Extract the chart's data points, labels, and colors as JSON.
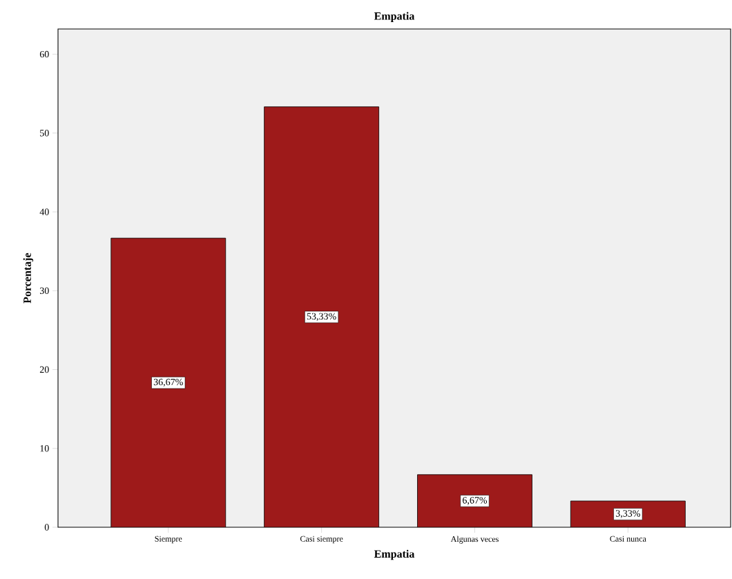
{
  "chart_data": {
    "type": "bar",
    "title": "Empatia",
    "xlabel": "Empatia",
    "ylabel": "Porcentaje",
    "categories": [
      "Siempre",
      "Casi siempre",
      "Algunas veces",
      "Casi nunca"
    ],
    "values": [
      36.67,
      53.33,
      6.67,
      3.33
    ],
    "value_labels": [
      "36,67%",
      "53,33%",
      "6,67%",
      "3,33%"
    ],
    "color": "#9e1a1a",
    "ylim": [
      0,
      63.2
    ],
    "yticks": [
      0,
      10,
      20,
      30,
      40,
      50,
      60
    ],
    "grid": false
  }
}
